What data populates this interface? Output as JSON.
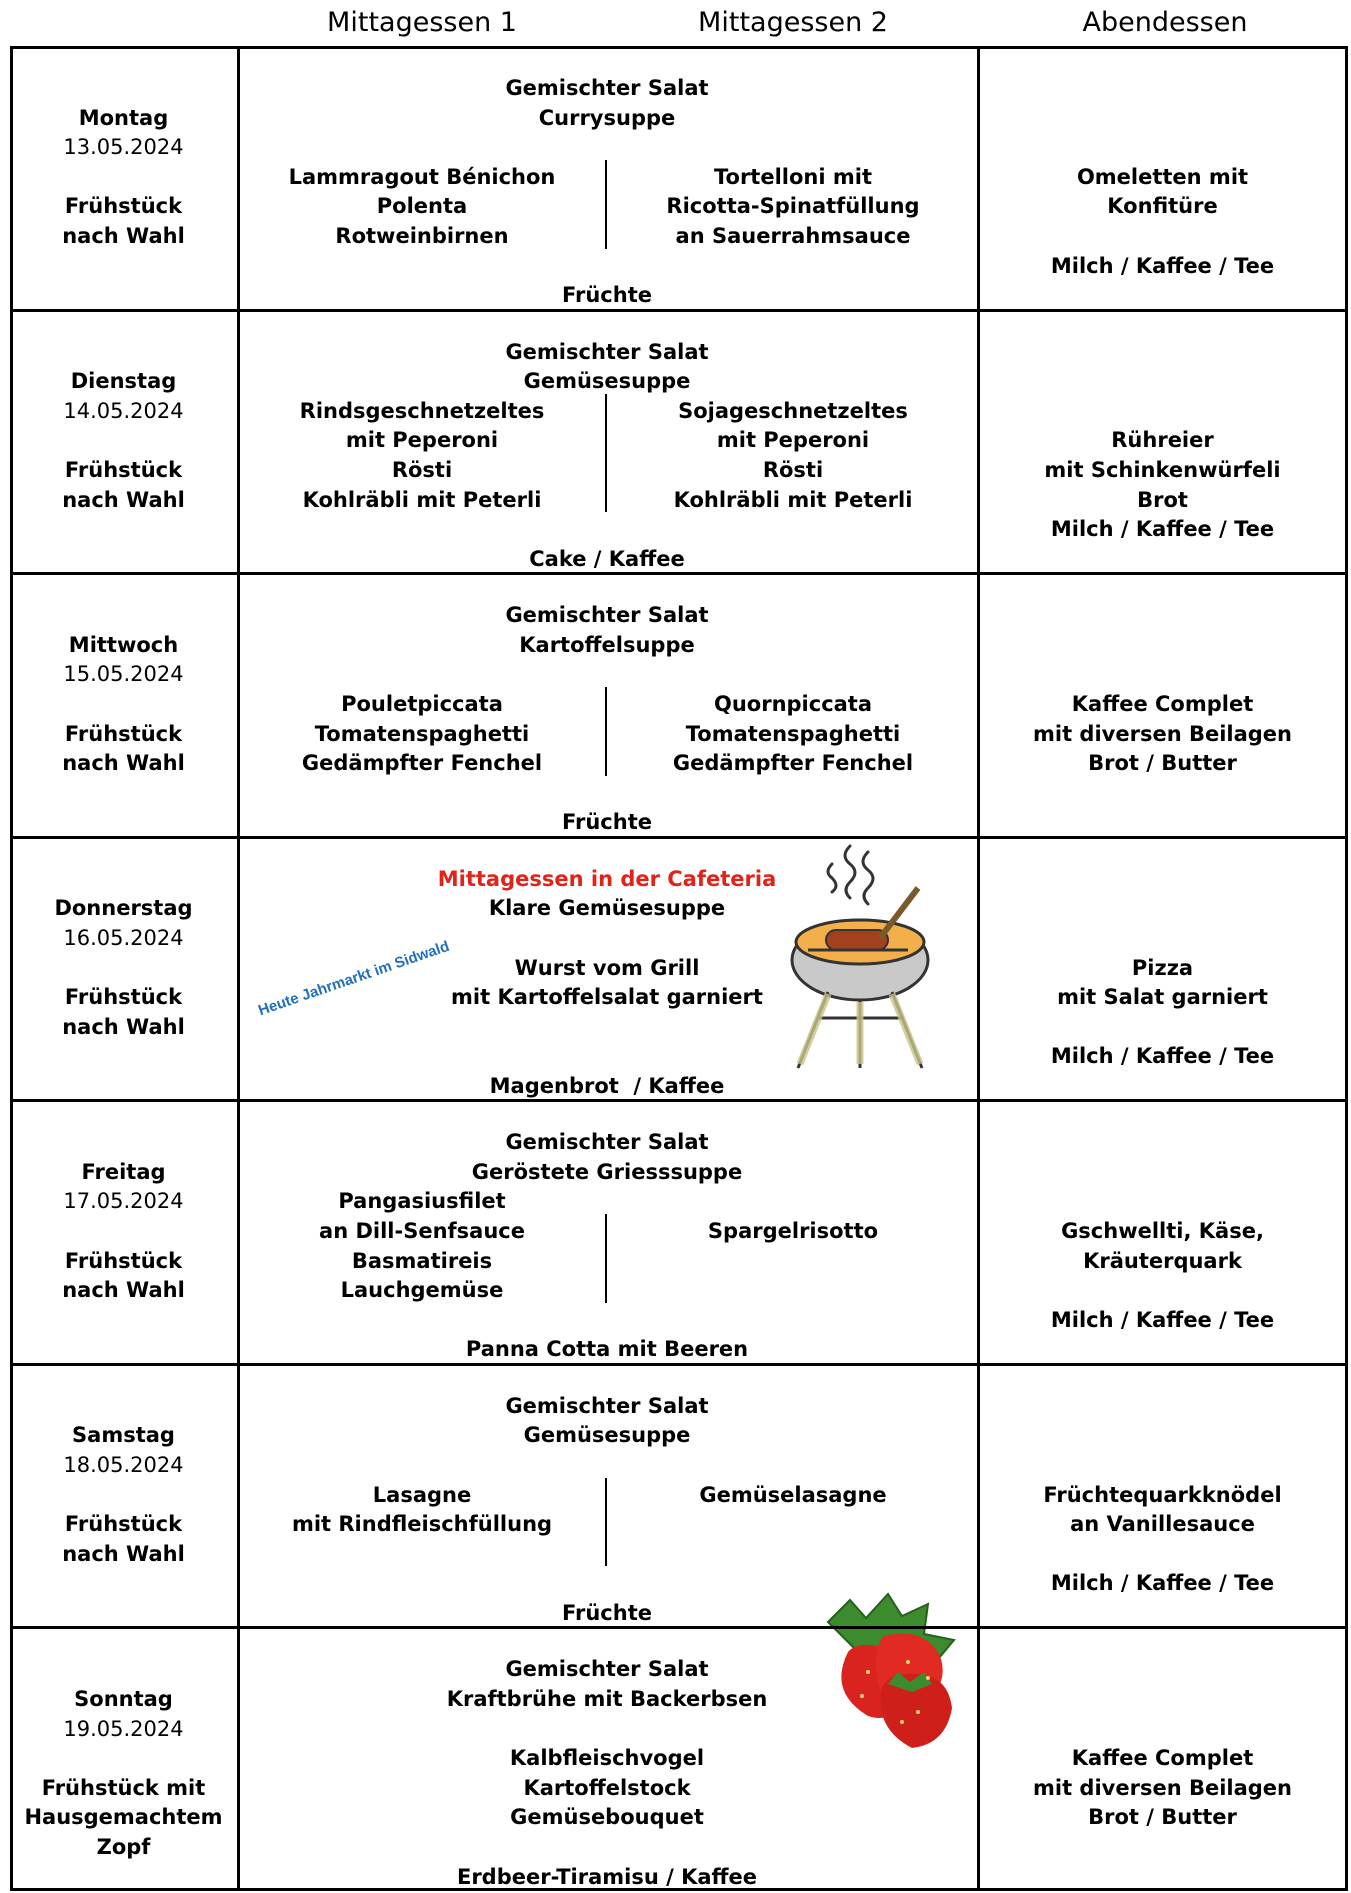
{
  "header": {
    "columns": [
      "Mittagessen 1",
      "Mittagessen 2",
      "Abendessen"
    ]
  },
  "days": [
    {
      "day": "Montag",
      "date": "13.05.2024",
      "breakfast": [
        "Frühstück",
        "nach Wahl"
      ],
      "lunch": {
        "starters": [
          "Gemischter Salat",
          "Currysuppe"
        ],
        "menu_1": [
          "Lammragout Bénichon",
          "Polenta",
          "Rotweinbirnen"
        ],
        "menu_2": [
          "Tortelloni mit",
          "Ricotta-Spinatfüllung",
          "an Sauerrahmsauce"
        ],
        "dessert": "Früchte"
      },
      "dinner": [
        [
          "Omeletten mit",
          "Konfitüre"
        ],
        [
          "Milch / Kaffee / Tee"
        ]
      ]
    },
    {
      "day": "Dienstag",
      "date": "14.05.2024",
      "breakfast": [
        "Frühstück",
        "nach Wahl"
      ],
      "lunch": {
        "starters": [
          "Gemischter Salat",
          "Gemüsesuppe"
        ],
        "menu_1": [
          "Rindsgeschnetzeltes",
          "mit Peperoni",
          "Rösti",
          "Kohlräbli mit Peterli"
        ],
        "menu_2": [
          "Sojageschnetzeltes",
          "mit Peperoni",
          "Rösti",
          "Kohlräbli mit Peterli"
        ],
        "dessert": "Cake / Kaffee"
      },
      "dinner": [
        [
          "Rühreier",
          "mit Schinkenwürfeli",
          "Brot",
          "Milch / Kaffee / Tee"
        ]
      ]
    },
    {
      "day": "Mittwoch",
      "date": "15.05.2024",
      "breakfast": [
        "Frühstück",
        "nach Wahl"
      ],
      "lunch": {
        "starters": [
          "Gemischter Salat",
          "Kartoffelsuppe"
        ],
        "menu_1": [
          "Pouletpiccata",
          "Tomatenspaghetti",
          "Gedämpfter Fenchel"
        ],
        "menu_2": [
          "Quornpiccata",
          "Tomatenspaghetti",
          "Gedämpfter Fenchel"
        ],
        "dessert": "Früchte"
      },
      "dinner": [
        [
          "Kaffee Complet",
          "mit diversen Beilagen",
          "Brot / Butter"
        ]
      ]
    },
    {
      "day": "Donnerstag",
      "date": "16.05.2024",
      "breakfast": [
        "Frühstück",
        "nach Wahl"
      ],
      "lunch": {
        "notice": "Mittagessen in der Cafeteria",
        "starters": [
          "Klare Gemüsesuppe"
        ],
        "main": [
          "Wurst vom Grill",
          "mit Kartoffelsalat garniert"
        ],
        "dessert": "Magenbrot  / Kaffee",
        "side_note": "Heute Jahrmarkt im Sidwald"
      },
      "dinner": [
        [
          "Pizza",
          "mit Salat garniert"
        ],
        [
          "Milch / Kaffee / Tee"
        ]
      ]
    },
    {
      "day": "Freitag",
      "date": "17.05.2024",
      "breakfast": [
        "Frühstück",
        "nach Wahl"
      ],
      "lunch": {
        "starters": [
          "Gemischter Salat",
          "Geröstete Griesssuppe"
        ],
        "menu_1": [
          "Pangasiusfilet",
          "an Dill-Senfsauce",
          "Basmatireis",
          "Lauchgemüse"
        ],
        "menu_2": [
          "Spargelrisotto"
        ],
        "dessert": "Panna Cotta mit Beeren"
      },
      "dinner": [
        [
          "Gschwellti, Käse,",
          "Kräuterquark"
        ],
        [
          "Milch / Kaffee / Tee"
        ]
      ]
    },
    {
      "day": "Samstag",
      "date": "18.05.2024",
      "breakfast": [
        "Frühstück",
        "nach Wahl"
      ],
      "lunch": {
        "starters": [
          "Gemischter Salat",
          "Gemüsesuppe"
        ],
        "menu_1": [
          "Lasagne",
          "mit Rindfleischfüllung"
        ],
        "menu_2": [
          "Gemüselasagne"
        ],
        "dessert": "Früchte"
      },
      "dinner": [
        [
          "Früchtequarkknödel",
          "an Vanillesauce"
        ],
        [
          "Milch / Kaffee / Tee"
        ]
      ]
    },
    {
      "day": "Sonntag",
      "date": "19.05.2024",
      "breakfast": [
        "Frühstück mit",
        "Hausgemachtem",
        "Zopf"
      ],
      "lunch": {
        "starters": [
          "Gemischter Salat",
          "Kraftbrühe mit Backerbsen"
        ],
        "main": [
          "Kalbfleischvogel",
          "Kartoffelstock",
          "Gemüsebouquet"
        ],
        "dessert": "Erdbeer-Tiramisu / Kaffee"
      },
      "dinner": [
        [
          "Kaffee Complet",
          "mit diversen Beilagen",
          "Brot / Butter"
        ]
      ]
    }
  ]
}
